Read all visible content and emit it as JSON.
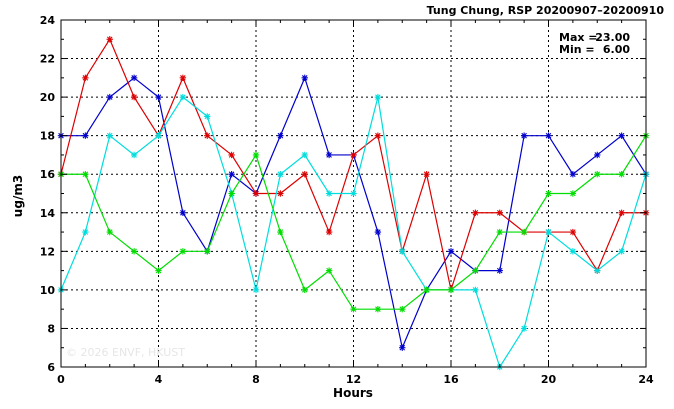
{
  "chart_data": {
    "type": "line",
    "title": "Tung Chung, RSP 20200907–20200910",
    "xlabel": "Hours",
    "ylabel": "ug/m3",
    "xlim": [
      0,
      24
    ],
    "ylim": [
      6,
      24
    ],
    "x_ticks": [
      0,
      4,
      8,
      12,
      16,
      20,
      24
    ],
    "y_ticks": [
      6,
      8,
      10,
      12,
      14,
      16,
      18,
      20,
      22,
      24
    ],
    "x_tick_labels": [
      "0",
      "4",
      "8",
      "12",
      "16",
      "20",
      "24"
    ],
    "y_tick_labels": [
      "6",
      "8",
      "10",
      "12",
      "14",
      "16",
      "18",
      "20",
      "22",
      "24"
    ],
    "grid": true,
    "stats": {
      "max_label": "Max =",
      "max_value": "23.00",
      "min_label": "Min =",
      "min_value": "6.00"
    },
    "watermark": "© 2026  ENVF, HKUST",
    "x": [
      0,
      1,
      2,
      3,
      4,
      5,
      6,
      7,
      8,
      9,
      10,
      11,
      12,
      13,
      14,
      15,
      16,
      17,
      18,
      19,
      20,
      21,
      22,
      23,
      24
    ],
    "series": [
      {
        "color": "#0000cc",
        "values": [
          18,
          18,
          20,
          21,
          20,
          14,
          12,
          16,
          15,
          18,
          21,
          17,
          17,
          13,
          7,
          10,
          12,
          11,
          11,
          18,
          18,
          16,
          17,
          18,
          16
        ]
      },
      {
        "color": "#dd0000",
        "values": [
          16,
          21,
          23,
          20,
          18,
          21,
          18,
          17,
          15,
          15,
          16,
          13,
          17,
          18,
          12,
          16,
          10,
          14,
          14,
          13,
          13,
          13,
          11,
          14,
          14
        ]
      },
      {
        "color": "#00dddd",
        "values": [
          10,
          13,
          18,
          17,
          18,
          20,
          19,
          15,
          10,
          16,
          17,
          15,
          15,
          20,
          12,
          10,
          10,
          10,
          6,
          8,
          13,
          12,
          11,
          12,
          16
        ]
      },
      {
        "color": "#00dd00",
        "values": [
          16,
          16,
          13,
          12,
          11,
          12,
          12,
          15,
          17,
          13,
          10,
          11,
          9,
          9,
          9,
          10,
          10,
          11,
          13,
          13,
          15,
          15,
          16,
          16,
          18
        ]
      }
    ]
  }
}
